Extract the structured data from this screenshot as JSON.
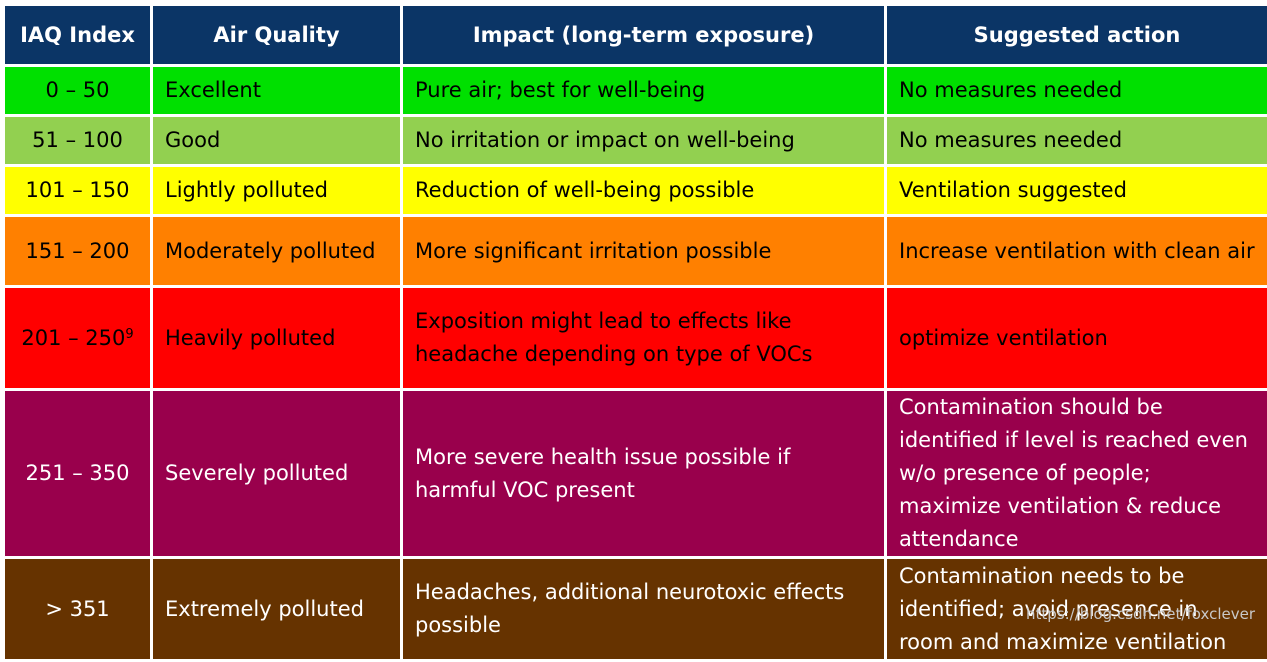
{
  "headers": {
    "index": "IAQ Index",
    "quality": "Air Quality",
    "impact": "Impact (long-term exposure)",
    "action": "Suggested action"
  },
  "colors": {
    "header": "#0b3566",
    "excellent": "#00e000",
    "good": "#92d050",
    "lightly": "#ffff00",
    "moderately": "#ff8000",
    "heavily": "#ff0000",
    "severely": "#99004c",
    "extremely": "#663300"
  },
  "rows": [
    {
      "index": "0 – 50",
      "quality": "Excellent",
      "impact": "Pure air; best for well-being",
      "action": "No measures needed"
    },
    {
      "index": "51 – 100",
      "quality": "Good",
      "impact": "No irritation or impact on well-being",
      "action": "No measures needed"
    },
    {
      "index": "101 – 150",
      "quality": "Lightly polluted",
      "impact": "Reduction of well-being possible",
      "action": "Ventilation suggested"
    },
    {
      "index": "151 – 200",
      "quality": "Moderately polluted",
      "impact": "More significant irritation possible",
      "action": "Increase ventilation with clean air"
    },
    {
      "index": "201 – 250",
      "index_sup": "9",
      "quality": "Heavily polluted",
      "impact": "Exposition might lead to effects like headache depending on type of VOCs",
      "action": "optimize ventilation"
    },
    {
      "index": "251 – 350",
      "quality": "Severely polluted",
      "impact": "More severe health issue possible if harmful VOC present",
      "action": "Contamination should be identified if level is reached even w/o presence of people; maximize ventilation & reduce attendance"
    },
    {
      "index": "> 351",
      "quality": "Extremely polluted",
      "impact": "Headaches, additional neurotoxic effects possible",
      "action": "Contamination needs to be identified; avoid presence in room and maximize ventilation"
    }
  ],
  "watermark": "https://blog.csdn.net/foxclever"
}
